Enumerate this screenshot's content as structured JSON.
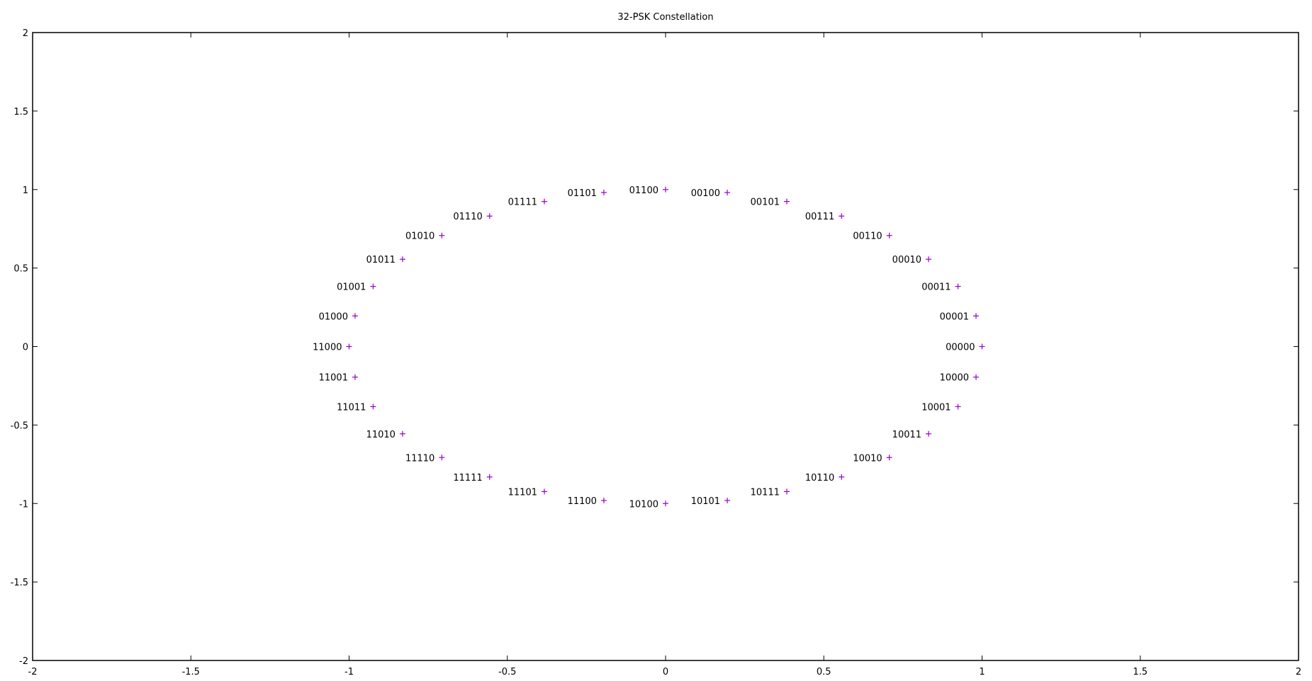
{
  "chart_data": {
    "type": "scatter",
    "title": "32-PSK Constellation",
    "xlabel": "",
    "ylabel": "",
    "xlim": [
      -2,
      2
    ],
    "ylim": [
      -2,
      2
    ],
    "x_ticks": [
      "-2",
      "-1.5",
      "-1",
      "-0.5",
      "0",
      "0.5",
      "1",
      "1.5",
      "2"
    ],
    "y_ticks": [
      "2",
      "1.5",
      "1",
      "0.5",
      "0",
      "-0.5",
      "-1",
      "-1.5",
      "-2"
    ],
    "grid": false,
    "marker": "plus",
    "point_color": "#9400d3",
    "points": [
      {
        "x": 1.0,
        "y": 0.0,
        "label": "00000"
      },
      {
        "x": 0.981,
        "y": 0.195,
        "label": "00001"
      },
      {
        "x": 0.924,
        "y": 0.383,
        "label": "00011"
      },
      {
        "x": 0.831,
        "y": 0.556,
        "label": "00010"
      },
      {
        "x": 0.707,
        "y": 0.707,
        "label": "00110"
      },
      {
        "x": 0.556,
        "y": 0.831,
        "label": "00111"
      },
      {
        "x": 0.383,
        "y": 0.924,
        "label": "00101"
      },
      {
        "x": 0.195,
        "y": 0.981,
        "label": "00100"
      },
      {
        "x": 0.0,
        "y": 1.0,
        "label": "01100"
      },
      {
        "x": -0.195,
        "y": 0.981,
        "label": "01101"
      },
      {
        "x": -0.383,
        "y": 0.924,
        "label": "01111"
      },
      {
        "x": -0.556,
        "y": 0.831,
        "label": "01110"
      },
      {
        "x": -0.707,
        "y": 0.707,
        "label": "01010"
      },
      {
        "x": -0.831,
        "y": 0.556,
        "label": "01011"
      },
      {
        "x": -0.924,
        "y": 0.383,
        "label": "01001"
      },
      {
        "x": -0.981,
        "y": 0.195,
        "label": "01000"
      },
      {
        "x": -1.0,
        "y": 0.0,
        "label": "11000"
      },
      {
        "x": -0.981,
        "y": -0.195,
        "label": "11001"
      },
      {
        "x": -0.924,
        "y": -0.383,
        "label": "11011"
      },
      {
        "x": -0.831,
        "y": -0.556,
        "label": "11010"
      },
      {
        "x": -0.707,
        "y": -0.707,
        "label": "11110"
      },
      {
        "x": -0.556,
        "y": -0.831,
        "label": "11111"
      },
      {
        "x": -0.383,
        "y": -0.924,
        "label": "11101"
      },
      {
        "x": -0.195,
        "y": -0.981,
        "label": "11100"
      },
      {
        "x": 0.0,
        "y": -1.0,
        "label": "10100"
      },
      {
        "x": 0.195,
        "y": -0.981,
        "label": "10101"
      },
      {
        "x": 0.383,
        "y": -0.924,
        "label": "10111"
      },
      {
        "x": 0.556,
        "y": -0.831,
        "label": "10110"
      },
      {
        "x": 0.707,
        "y": -0.707,
        "label": "10010"
      },
      {
        "x": 0.831,
        "y": -0.556,
        "label": "10011"
      },
      {
        "x": 0.924,
        "y": -0.383,
        "label": "10001"
      },
      {
        "x": 0.981,
        "y": -0.195,
        "label": "10000"
      }
    ]
  }
}
